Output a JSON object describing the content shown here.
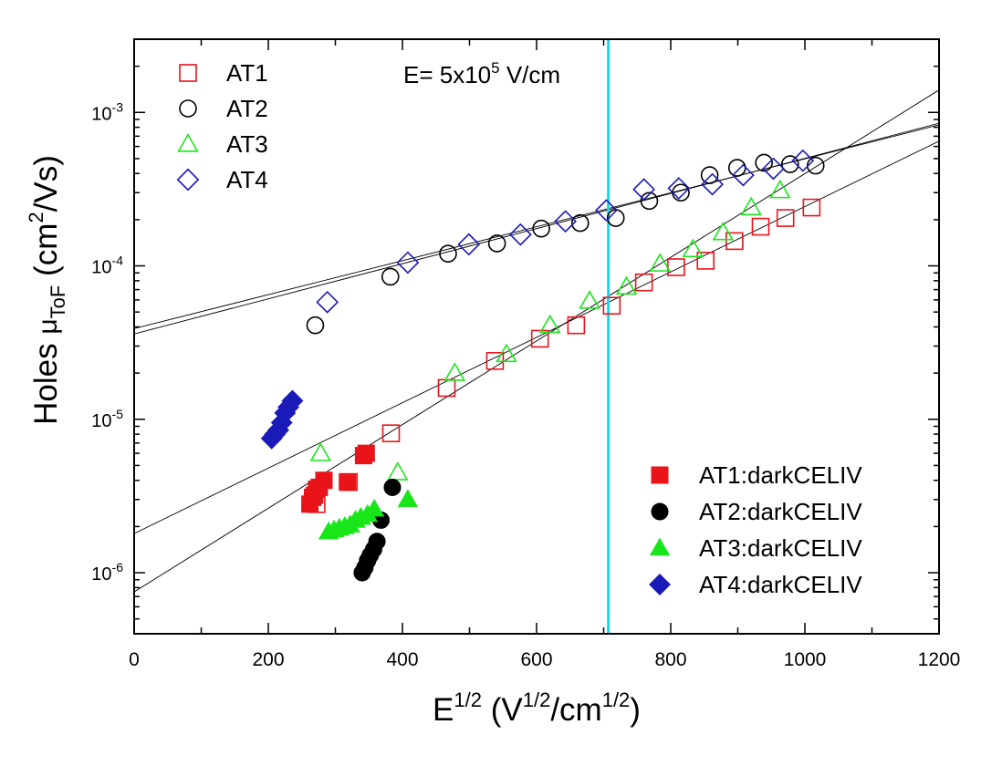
{
  "chart_data": {
    "type": "scatter",
    "xscale": "linear",
    "yscale": "log",
    "xlim": [
      0,
      1200
    ],
    "ylim": [
      4e-07,
      0.003
    ],
    "x_ticks": [
      {
        "value": 0,
        "label": "0"
      },
      {
        "value": 200,
        "label": "200"
      },
      {
        "value": 400,
        "label": "400"
      },
      {
        "value": 600,
        "label": "600"
      },
      {
        "value": 800,
        "label": "800"
      },
      {
        "value": 1000,
        "label": "1000"
      },
      {
        "value": 1200,
        "label": "1200"
      }
    ],
    "y_ticks": [
      {
        "value": 1e-06,
        "base": "10",
        "exp": "-6"
      },
      {
        "value": 1e-05,
        "base": "10",
        "exp": "-5"
      },
      {
        "value": 0.0001,
        "base": "10",
        "exp": "-4"
      },
      {
        "value": 0.001,
        "base": "10",
        "exp": "-3"
      }
    ],
    "xlabel": {
      "main": "E",
      "sup1": "1/2",
      "rest1": " (V",
      "sup2": "1/2",
      "rest2": "/cm",
      "sup3": "1/2",
      "rest3": ")"
    },
    "ylabel": {
      "main": "Holes ",
      "mu": "μ",
      "sub": "ToF",
      "rest1": " (cm",
      "sup": "2",
      "rest2": "/Vs)"
    },
    "annotation": {
      "before": "E= 5x10",
      "sup": "5",
      "after": " V/cm"
    },
    "vline": {
      "x": 707,
      "color": "#22d3e6"
    },
    "series": [
      {
        "name": "AT1",
        "marker": "square",
        "filled": false,
        "color": "#e8141a",
        "x": [
          272,
          320,
          383,
          466,
          538,
          605,
          659,
          712,
          760,
          808,
          852,
          895,
          934,
          971,
          1010
        ],
        "y": [
          2.8e-06,
          3.9e-06,
          8.1e-06,
          1.6e-05,
          2.4e-05,
          3.35e-05,
          4.1e-05,
          5.5e-05,
          7.8e-05,
          9.8e-05,
          0.000108,
          0.000145,
          0.00018,
          0.000205,
          0.00024
        ]
      },
      {
        "name": "AT2",
        "marker": "circle",
        "filled": false,
        "color": "#000000",
        "x": [
          270,
          382,
          468,
          541,
          607,
          665,
          718,
          768,
          815,
          858,
          899,
          939,
          978,
          1016
        ],
        "y": [
          4.1e-05,
          8.5e-05,
          0.00012,
          0.00014,
          0.000175,
          0.00019,
          0.000205,
          0.000265,
          0.0003,
          0.00039,
          0.000435,
          0.00047,
          0.00046,
          0.00045
        ]
      },
      {
        "name": "AT3",
        "marker": "triangle",
        "filled": false,
        "color": "#19e619",
        "x": [
          278,
          393,
          478,
          555,
          620,
          679,
          734,
          784,
          833,
          878,
          920,
          963
        ],
        "y": [
          6e-06,
          4.5e-06,
          2e-05,
          2.65e-05,
          4.1e-05,
          5.9e-05,
          7.3e-05,
          0.000103,
          0.000128,
          0.000165,
          0.00024,
          0.00031
        ]
      },
      {
        "name": "AT4",
        "marker": "diamond",
        "filled": false,
        "color": "#1a1ab8",
        "x": [
          288,
          408,
          499,
          576,
          643,
          704,
          760,
          812,
          862,
          908,
          953,
          997
        ],
        "y": [
          5.8e-05,
          0.000105,
          0.000138,
          0.00016,
          0.000195,
          0.00023,
          0.000315,
          0.00032,
          0.00034,
          0.00039,
          0.00043,
          0.000485
        ]
      },
      {
        "name": "AT1:darkCELIV",
        "marker": "square",
        "filled": true,
        "color": "#e8141a",
        "x": [
          262,
          266,
          269,
          272,
          276,
          283,
          318,
          342,
          346
        ],
        "y": [
          2.8e-06,
          3.1e-06,
          3.2e-06,
          3.5e-06,
          3.6e-06,
          4e-06,
          3.9e-06,
          5.8e-06,
          6e-06
        ]
      },
      {
        "name": "AT2:darkCELIV",
        "marker": "circle",
        "filled": true,
        "color": "#000000",
        "x": [
          340,
          344,
          348,
          352,
          357,
          362,
          368,
          385
        ],
        "y": [
          1e-06,
          1.08e-06,
          1.2e-06,
          1.3e-06,
          1.42e-06,
          1.6e-06,
          2.2e-06,
          3.6e-06
        ]
      },
      {
        "name": "AT3:darkCELIV",
        "marker": "triangle",
        "filled": true,
        "color": "#19e619",
        "x": [
          290,
          298,
          306,
          314,
          322,
          330,
          338,
          348,
          358,
          408
        ],
        "y": [
          1.85e-06,
          1.9e-06,
          1.95e-06,
          2e-06,
          2.05e-06,
          2.2e-06,
          2.3e-06,
          2.4e-06,
          2.6e-06,
          3e-06
        ]
      },
      {
        "name": "AT4:darkCELIV",
        "marker": "diamond",
        "filled": true,
        "color": "#1a1ab8",
        "x": [
          205,
          210,
          215,
          220,
          225,
          230,
          236
        ],
        "y": [
          7.5e-06,
          8e-06,
          8.5e-06,
          9.5e-06,
          1.1e-05,
          1.2e-05,
          1.32e-05
        ]
      }
    ],
    "fit_lines": [
      {
        "x": [
          0,
          1200
        ],
        "y": [
          3.6e-05,
          0.00085
        ]
      },
      {
        "x": [
          0,
          1200
        ],
        "y": [
          3.9e-05,
          0.00083
        ]
      },
      {
        "x": [
          0,
          1200
        ],
        "y": [
          1.8e-06,
          0.00065
        ]
      },
      {
        "x": [
          0,
          1200
        ],
        "y": [
          7.5e-07,
          0.0014
        ]
      }
    ],
    "legends": [
      {
        "position": "top-left",
        "series": [
          "AT1",
          "AT2",
          "AT3",
          "AT4"
        ]
      },
      {
        "position": "bottom-right",
        "series": [
          "AT1:darkCELIV",
          "AT2:darkCELIV",
          "AT3:darkCELIV",
          "AT4:darkCELIV"
        ]
      }
    ]
  }
}
